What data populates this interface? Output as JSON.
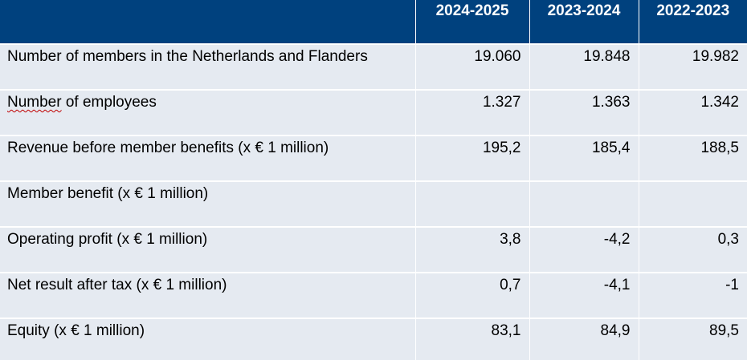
{
  "table": {
    "columns": [
      "",
      "2024-2025",
      "2023-2024",
      "2022-2023"
    ],
    "rows": [
      {
        "label": "Number of members in the Netherlands and Flanders",
        "values": [
          "19.060",
          "19.848",
          "19.982"
        ]
      },
      {
        "label_parts": [
          "Number",
          " of employees"
        ],
        "values": [
          "1.327",
          "1.363",
          "1.342"
        ]
      },
      {
        "label": "Revenue before member benefits (x € 1 million)",
        "values": [
          "195,2",
          "185,4",
          "188,5"
        ]
      },
      {
        "label": "Member benefit (x € 1 million)",
        "values": [
          "",
          "",
          ""
        ]
      },
      {
        "label": "Operating profit (x € 1 million)",
        "values": [
          "3,8",
          "-4,2",
          "0,3"
        ]
      },
      {
        "label": "Net result after tax (x € 1 million)",
        "values": [
          "0,7",
          "-4,1",
          "-1"
        ]
      },
      {
        "label": "Equity (x € 1 million)",
        "values": [
          "83,1",
          "84,9",
          "89,5"
        ]
      }
    ]
  },
  "colors": {
    "header_bg": "#00417e",
    "header_text": "#ffffff",
    "row_bg": "#e5eaf1",
    "spellcheck_underline": "#c00000"
  }
}
